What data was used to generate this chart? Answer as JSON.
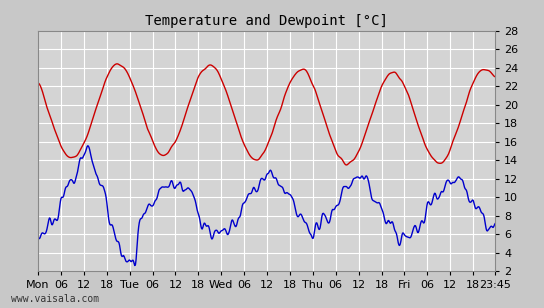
{
  "title": "Temperature and Dewpoint [°C]",
  "bg_color": "#c8c8c8",
  "plot_bg_color": "#d4d4d4",
  "grid_color": "#ffffff",
  "temp_color": "#cc0000",
  "dewp_color": "#0000cc",
  "y_min": 2,
  "y_max": 28,
  "y_ticks": [
    2,
    4,
    6,
    8,
    10,
    12,
    14,
    16,
    18,
    20,
    22,
    24,
    26,
    28
  ],
  "x_tick_labels": [
    "Mon",
    "06",
    "12",
    "18",
    "Tue",
    "06",
    "12",
    "18",
    "Wed",
    "06",
    "12",
    "18",
    "Thu",
    "06",
    "12",
    "18",
    "Fri",
    "06",
    "12",
    "18",
    "23:45"
  ],
  "watermark": "www.vaisala.com",
  "total_hours": 119.75,
  "line_width": 1.0
}
